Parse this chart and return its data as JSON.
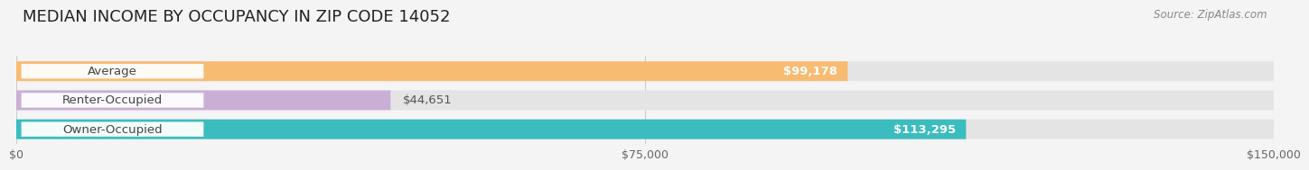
{
  "title": "MEDIAN INCOME BY OCCUPANCY IN ZIP CODE 14052",
  "source": "Source: ZipAtlas.com",
  "categories": [
    "Owner-Occupied",
    "Renter-Occupied",
    "Average"
  ],
  "values": [
    113295,
    44651,
    99178
  ],
  "labels": [
    "$113,295",
    "$44,651",
    "$99,178"
  ],
  "bar_colors": [
    "#3bbcbe",
    "#c9aed6",
    "#f7bc72"
  ],
  "xlim": [
    0,
    150000
  ],
  "xticks": [
    0,
    75000,
    150000
  ],
  "xticklabels": [
    "$0",
    "$75,000",
    "$150,000"
  ],
  "background_color": "#f4f4f4",
  "bar_bg_color": "#e4e4e4",
  "title_fontsize": 13,
  "label_fontsize": 9.5,
  "tick_fontsize": 9,
  "bar_height": 0.68,
  "inside_label_threshold": 0.5
}
